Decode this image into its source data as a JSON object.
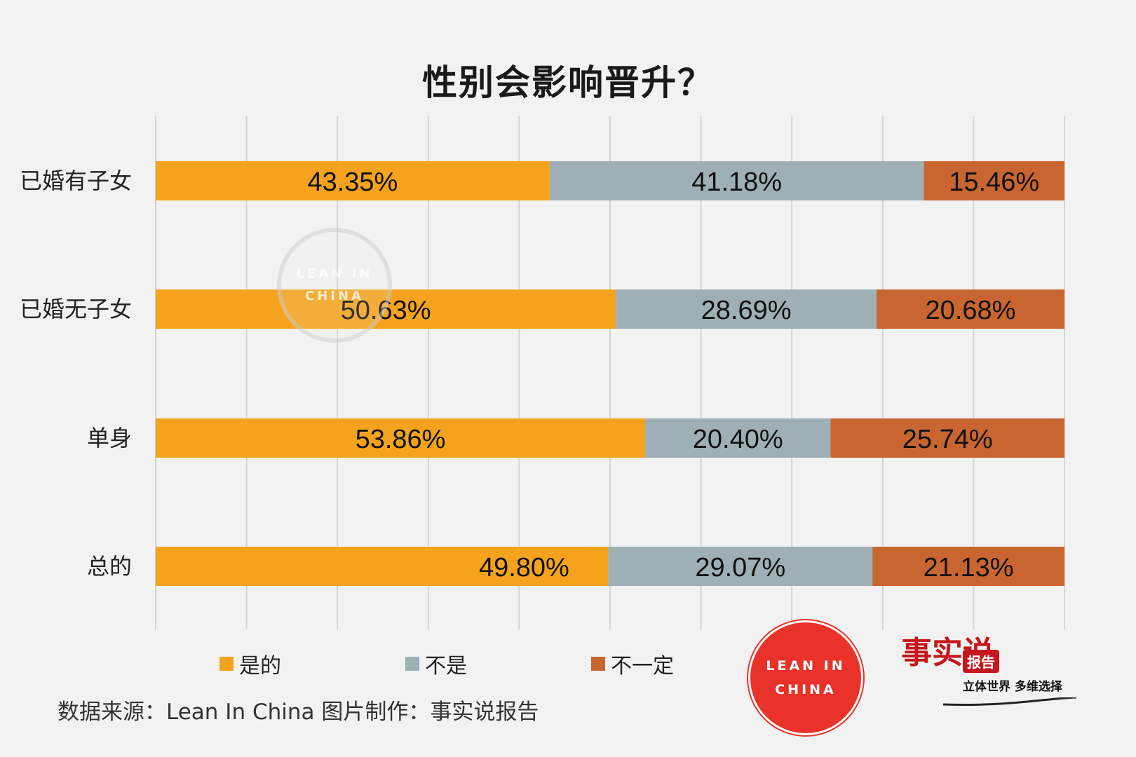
{
  "title": "性别会影响晋升？",
  "chart_data": {
    "type": "bar",
    "orientation": "horizontal",
    "stacked": true,
    "categories": [
      "已婚有子女",
      "已婚无子女",
      "单身",
      "总的"
    ],
    "series": [
      {
        "name": "是的",
        "values": [
          43.35,
          50.63,
          53.86,
          49.8
        ],
        "labels": [
          "43.35%",
          "50.63%",
          "53.86%",
          "49.80%"
        ],
        "color": "#f5a31c"
      },
      {
        "name": "不是",
        "values": [
          41.18,
          28.69,
          20.4,
          29.07
        ],
        "labels": [
          "41.18%",
          "28.69%",
          "20.40%",
          "29.07%"
        ],
        "color": "#9eb0b5"
      },
      {
        "name": "不一定",
        "values": [
          15.46,
          20.68,
          25.74,
          21.13
        ],
        "labels": [
          "15.46%",
          "20.68%",
          "25.74%",
          "21.13%"
        ],
        "color": "#c96530"
      }
    ],
    "xlim": [
      0,
      100
    ],
    "grid": true,
    "legend_position": "bottom"
  },
  "footer": {
    "source": "数据来源：Lean In China  图片制作：事实说报告"
  },
  "logos": {
    "leanin": {
      "line1": "LEAN IN",
      "line2": "CHINA"
    },
    "watermark": {
      "line1": "LEAN IN",
      "line2": "CHINA"
    },
    "brand": {
      "calligraphy": "事实说",
      "badge": "报告",
      "tagline": "立体世界 多维选择"
    }
  }
}
